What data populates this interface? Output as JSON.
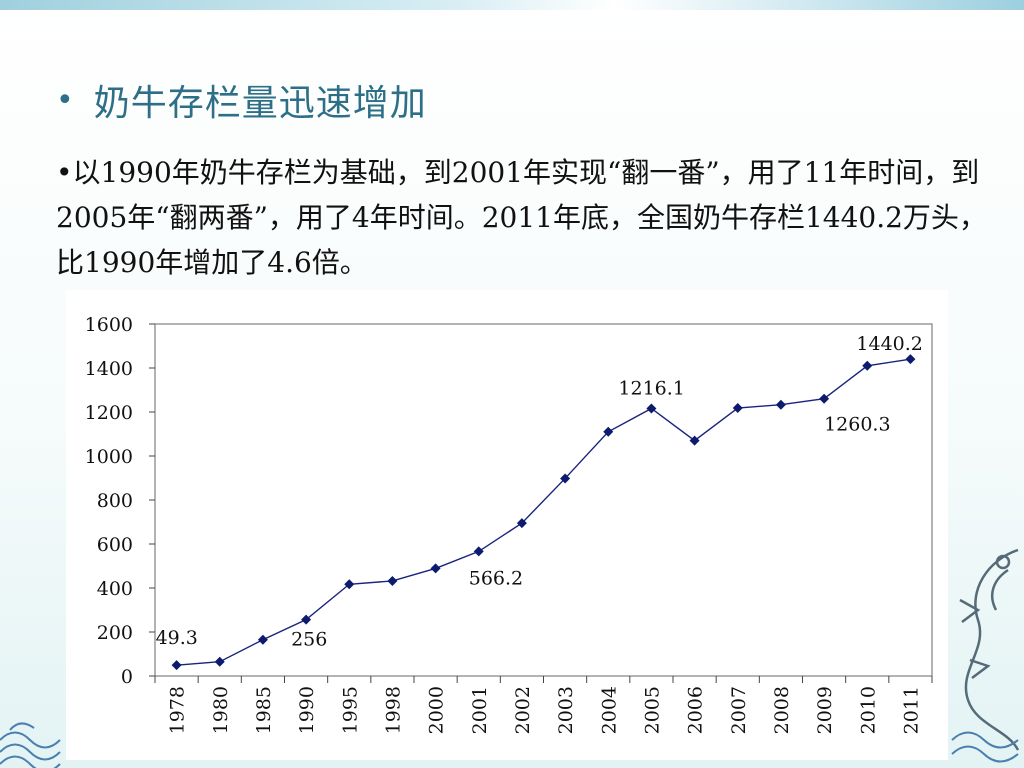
{
  "slide": {
    "bullet": "•",
    "title": "奶牛存栏量迅速增加",
    "body": "•以1990年奶牛存栏为基础，到2001年实现“翻一番”，用了11年时间，到2005年“翻两番”，用了4年时间。2011年底，全国奶牛存栏1440.2万头，比1990年增加了4.6倍。"
  },
  "colors": {
    "title": "#2c6f87",
    "line": "#1a237e",
    "marker": "#0d1b6e"
  },
  "chart_data": {
    "type": "line",
    "categories": [
      "1978",
      "1980",
      "1985",
      "1990",
      "1995",
      "1998",
      "2000",
      "2001",
      "2002",
      "2003",
      "2004",
      "2005",
      "2006",
      "2007",
      "2008",
      "2009",
      "2010",
      "2011"
    ],
    "series": [
      {
        "values": [
          49.3,
          65,
          165,
          256,
          417,
          432,
          489,
          566.2,
          695,
          898,
          1110,
          1216.1,
          1070,
          1218,
          1233,
          1260.3,
          1410,
          1440.2
        ]
      }
    ],
    "ylim": [
      0,
      1600
    ],
    "yticks": [
      "0",
      "200",
      "400",
      "600",
      "800",
      "1000",
      "1200",
      "1400",
      "1600"
    ],
    "grid": false,
    "annotations": [
      {
        "index": 0,
        "text": "49.3"
      },
      {
        "index": 3,
        "text": "256"
      },
      {
        "index": 7,
        "text": "566.2"
      },
      {
        "index": 11,
        "text": "1216.1"
      },
      {
        "index": 15,
        "text": "1260.3"
      },
      {
        "index": 17,
        "text": "1440.2"
      }
    ]
  }
}
